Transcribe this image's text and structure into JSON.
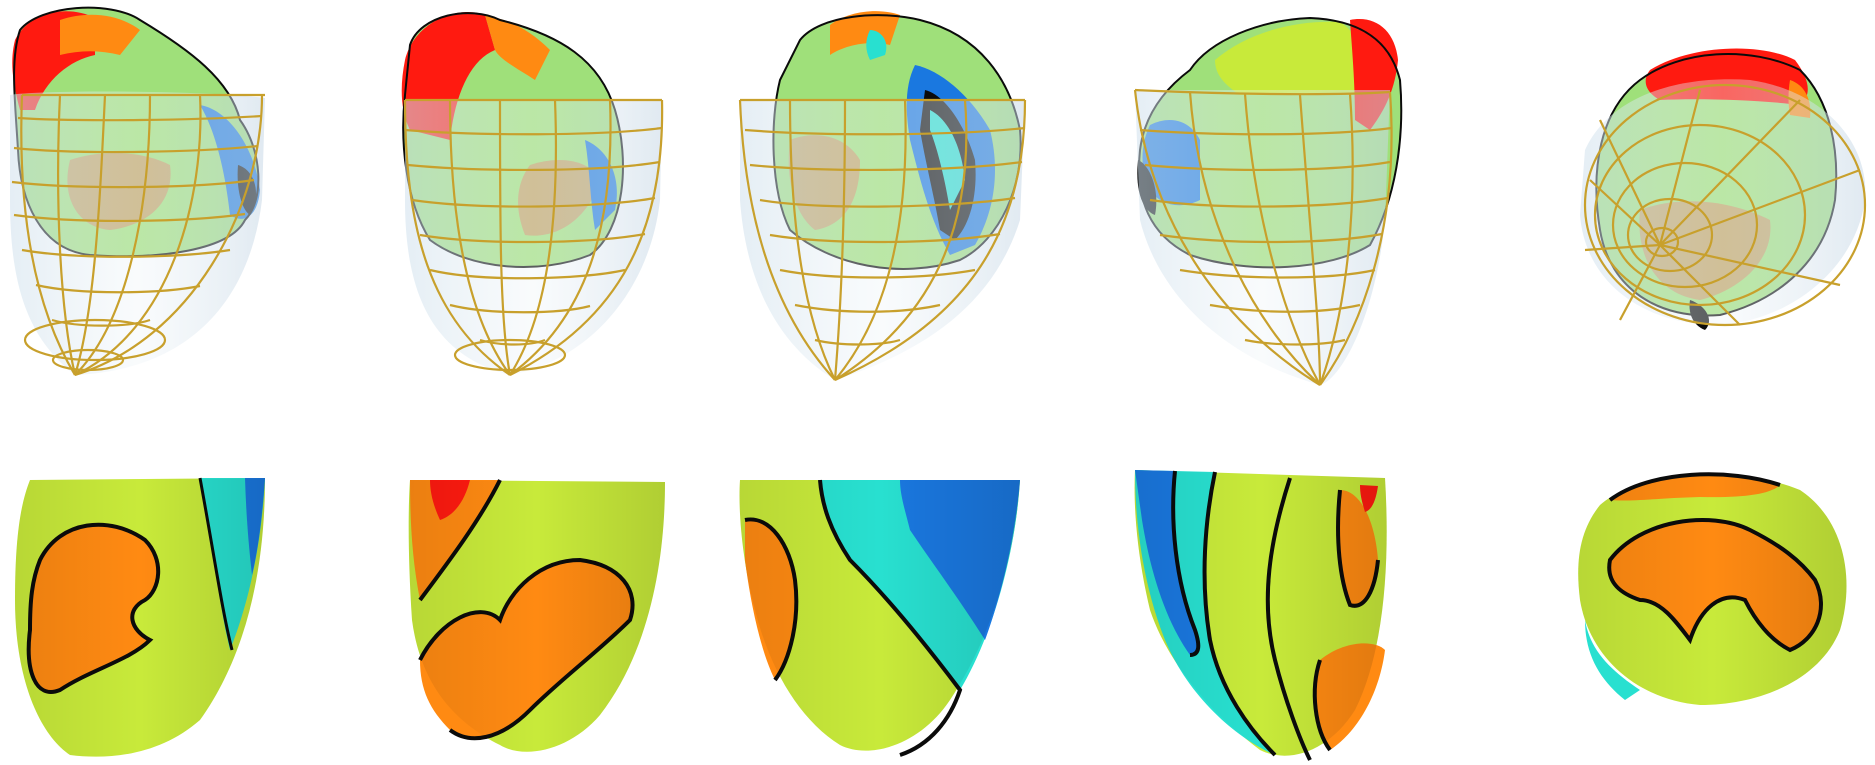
{
  "figure": {
    "background": "#ffffff",
    "rows": [
      {
        "id": "top",
        "description_kind": "atrium-with-wireframe",
        "views": 5
      },
      {
        "id": "bottom",
        "description_kind": "ventricle-surface-map",
        "views": 5
      }
    ],
    "palette": {
      "red": "#ff1a10",
      "orange": "#ff8a12",
      "yellow_green": "#c8ea3a",
      "light_green": "#9fe07a",
      "cyan": "#28e0d0",
      "blue": "#1a78e0",
      "dark": "#0b0b0b",
      "wire": "#c8a02c",
      "ghost": "#dfe8f0",
      "tan": "#c69860"
    }
  }
}
